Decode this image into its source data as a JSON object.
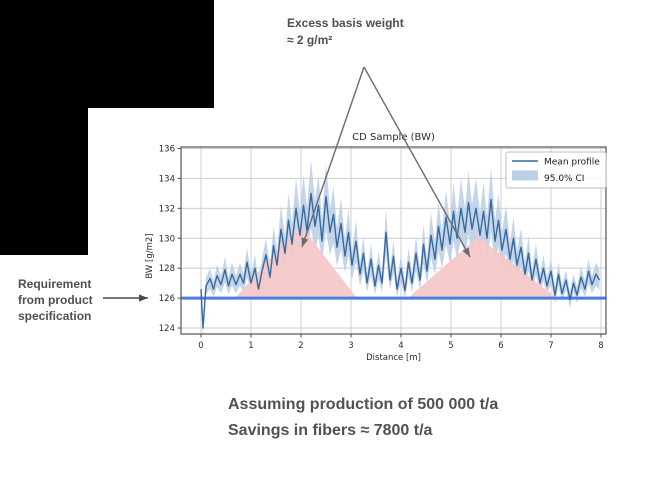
{
  "slide": {
    "background": "#ffffff"
  },
  "annotations": {
    "excess": {
      "line1": "Excess basis weight",
      "line2": "≈ 2 g/m²"
    },
    "requirement": {
      "line1": "Requirement",
      "line2": "from product",
      "line3": "specification"
    },
    "assumption": {
      "line1": "Assuming production of 500 000 t/a",
      "line2": "Savings in fibers ≈ 7800 t/a"
    }
  },
  "colors": {
    "mean_line": "#36699f",
    "ci_band": "#b5cbe5",
    "requirement_line": "#4b7ce0",
    "excess_fill": "#f5c8c9",
    "arrow": "#6b6b6b",
    "requirement_arrow": "#4a4a4a",
    "grid": "#cfcfcf",
    "spine": "#555555",
    "tick_text": "#2b2b2b",
    "slide_text": "#4f4f4f",
    "legend_border": "#bfbfbf",
    "mask": "#000000"
  },
  "chart_data": {
    "type": "line",
    "title": "CD Sample (BW)",
    "xlabel": "Distance [m]",
    "ylabel": "BW [g/m2]",
    "xlim": [
      -0.4,
      8.1
    ],
    "ylim": [
      123.6,
      136.1
    ],
    "xticks": [
      0,
      1,
      2,
      3,
      4,
      5,
      6,
      7,
      8
    ],
    "yticks": [
      124,
      126,
      128,
      130,
      132,
      134,
      136
    ],
    "grid": true,
    "legend": {
      "position": "upper right",
      "entries": [
        {
          "label": "Mean profile",
          "type": "line",
          "color": "#36699f"
        },
        {
          "label": "95.0% CI",
          "type": "patch",
          "color": "#b5cbe5"
        }
      ]
    },
    "requirement_line": {
      "y": 126,
      "color": "#4b7ce0"
    },
    "excess_regions": [
      {
        "shape": "triangle",
        "points": [
          [
            0.68,
            126
          ],
          [
            1.98,
            130.9
          ],
          [
            3.12,
            126
          ]
        ]
      },
      {
        "shape": "triangle",
        "points": [
          [
            4.14,
            126
          ],
          [
            5.54,
            130.1
          ],
          [
            7.12,
            126
          ]
        ]
      }
    ],
    "ci": {
      "label": "95.0% CI",
      "halfwidth_base": 0.55,
      "halfwidth_slope": 0.28,
      "ref": 126.8
    },
    "series": [
      {
        "name": "Mean profile",
        "points": [
          [
            0.0,
            126.6
          ],
          [
            0.04,
            124.0
          ],
          [
            0.1,
            126.8
          ],
          [
            0.18,
            127.3
          ],
          [
            0.25,
            126.6
          ],
          [
            0.32,
            127.5
          ],
          [
            0.4,
            126.9
          ],
          [
            0.48,
            127.9
          ],
          [
            0.55,
            126.8
          ],
          [
            0.62,
            127.6
          ],
          [
            0.7,
            126.9
          ],
          [
            0.78,
            127.6
          ],
          [
            0.85,
            127.0
          ],
          [
            0.92,
            128.4
          ],
          [
            1.0,
            127.0
          ],
          [
            1.08,
            128.0
          ],
          [
            1.15,
            126.6
          ],
          [
            1.22,
            127.8
          ],
          [
            1.3,
            128.9
          ],
          [
            1.38,
            127.4
          ],
          [
            1.45,
            129.5
          ],
          [
            1.52,
            128.2
          ],
          [
            1.6,
            130.6
          ],
          [
            1.68,
            129.0
          ],
          [
            1.75,
            131.2
          ],
          [
            1.82,
            129.6
          ],
          [
            1.9,
            132.0
          ],
          [
            1.98,
            130.2
          ],
          [
            2.05,
            132.2
          ],
          [
            2.12,
            130.5
          ],
          [
            2.2,
            133.0
          ],
          [
            2.28,
            130.8
          ],
          [
            2.35,
            132.2
          ],
          [
            2.42,
            129.8
          ],
          [
            2.5,
            132.8
          ],
          [
            2.58,
            130.4
          ],
          [
            2.65,
            131.6
          ],
          [
            2.72,
            129.4
          ],
          [
            2.8,
            131.0
          ],
          [
            2.88,
            128.8
          ],
          [
            2.95,
            130.4
          ],
          [
            3.02,
            128.2
          ],
          [
            3.1,
            129.8
          ],
          [
            3.18,
            127.6
          ],
          [
            3.25,
            129.0
          ],
          [
            3.32,
            127.0
          ],
          [
            3.4,
            128.6
          ],
          [
            3.48,
            126.8
          ],
          [
            3.55,
            128.2
          ],
          [
            3.62,
            127.0
          ],
          [
            3.7,
            130.4
          ],
          [
            3.78,
            127.2
          ],
          [
            3.85,
            128.8
          ],
          [
            3.92,
            126.6
          ],
          [
            4.0,
            128.0
          ],
          [
            4.08,
            126.5
          ],
          [
            4.15,
            128.4
          ],
          [
            4.22,
            127.0
          ],
          [
            4.3,
            129.0
          ],
          [
            4.38,
            127.2
          ],
          [
            4.45,
            129.6
          ],
          [
            4.52,
            127.8
          ],
          [
            4.6,
            130.2
          ],
          [
            4.68,
            128.6
          ],
          [
            4.75,
            130.8
          ],
          [
            4.82,
            129.2
          ],
          [
            4.9,
            131.4
          ],
          [
            4.98,
            129.6
          ],
          [
            5.05,
            131.8
          ],
          [
            5.12,
            130.0
          ],
          [
            5.2,
            132.0
          ],
          [
            5.28,
            130.4
          ],
          [
            5.35,
            132.4
          ],
          [
            5.42,
            130.6
          ],
          [
            5.5,
            132.0
          ],
          [
            5.58,
            130.2
          ],
          [
            5.65,
            131.8
          ],
          [
            5.72,
            130.0
          ],
          [
            5.8,
            132.6
          ],
          [
            5.88,
            129.8
          ],
          [
            5.95,
            131.2
          ],
          [
            6.02,
            129.2
          ],
          [
            6.1,
            130.6
          ],
          [
            6.18,
            128.6
          ],
          [
            6.25,
            130.0
          ],
          [
            6.32,
            128.2
          ],
          [
            6.4,
            129.4
          ],
          [
            6.48,
            127.6
          ],
          [
            6.55,
            129.0
          ],
          [
            6.62,
            127.2
          ],
          [
            6.7,
            128.6
          ],
          [
            6.78,
            127.0
          ],
          [
            6.85,
            128.0
          ],
          [
            6.92,
            126.8
          ],
          [
            7.0,
            127.8
          ],
          [
            7.08,
            126.2
          ],
          [
            7.15,
            127.6
          ],
          [
            7.22,
            126.3
          ],
          [
            7.3,
            127.2
          ],
          [
            7.38,
            125.9
          ],
          [
            7.45,
            127.0
          ],
          [
            7.52,
            126.2
          ],
          [
            7.6,
            127.4
          ],
          [
            7.68,
            126.6
          ],
          [
            7.75,
            127.8
          ],
          [
            7.82,
            126.9
          ],
          [
            7.9,
            127.6
          ],
          [
            7.97,
            127.2
          ]
        ]
      }
    ]
  }
}
